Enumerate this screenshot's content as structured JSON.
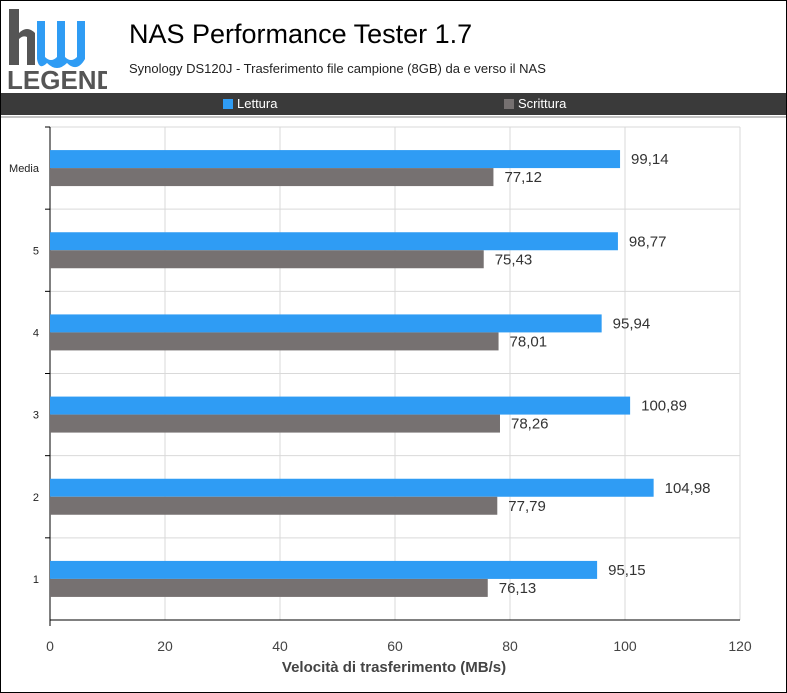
{
  "header": {
    "logo_text_top": "hw",
    "logo_text_bottom": "LEGEND",
    "title": "NAS Performance Tester 1.7",
    "subtitle": "Synology DS120J - Trasferimento file campione (8GB) da e verso il NAS"
  },
  "colors": {
    "read": "#2f9cf4",
    "write": "#767171",
    "legend_bg": "#3a3a3a",
    "grid": "#d9d9d9"
  },
  "chart_data": {
    "type": "bar",
    "orientation": "horizontal",
    "categories": [
      "Media",
      "5",
      "4",
      "3",
      "2",
      "1"
    ],
    "series": [
      {
        "name": "Lettura",
        "values": [
          99.14,
          98.77,
          95.94,
          100.89,
          104.98,
          95.15
        ]
      },
      {
        "name": "Scrittura",
        "values": [
          77.12,
          75.43,
          78.01,
          78.26,
          77.79,
          76.13
        ]
      }
    ],
    "data_labels": {
      "Lettura": [
        "99,14",
        "98,77",
        "95,94",
        "100,89",
        "104,98",
        "95,15"
      ],
      "Scrittura": [
        "77,12",
        "75,43",
        "78,01",
        "78,26",
        "77,79",
        "76,13"
      ]
    },
    "xlabel": "Velocità di trasferimento (MB/s)",
    "xlim": [
      0,
      120
    ],
    "xticks": [
      "0",
      "20",
      "40",
      "60",
      "80",
      "100",
      "120"
    ],
    "grid": true,
    "legend_position": "top"
  }
}
